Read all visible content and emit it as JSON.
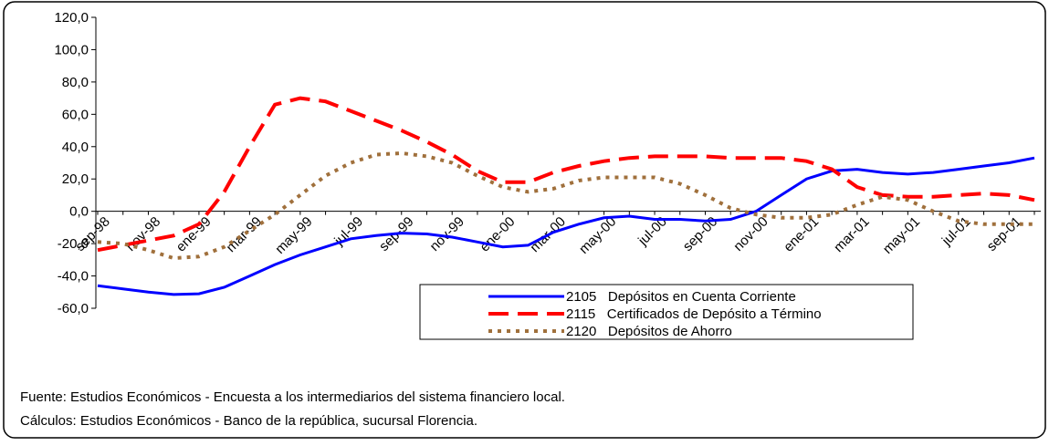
{
  "chart_data": {
    "type": "line",
    "categories": [
      "sep-98",
      null,
      "nov-98",
      null,
      "ene-99",
      null,
      "mar-99",
      null,
      "may-99",
      null,
      "jul-99",
      null,
      "sep-99",
      null,
      "nov-99",
      null,
      "ene-00",
      null,
      "mar-00",
      null,
      "may-00",
      null,
      "jul-00",
      null,
      "sep-00",
      null,
      "nov-00",
      null,
      "ene-01",
      null,
      "mar-01",
      null,
      "may-01",
      null,
      "jul-01",
      null,
      "sep-01",
      null
    ],
    "series": [
      {
        "name": "2105   Depósitos en Cuenta Corriente",
        "color": "#0000ff",
        "style": "solid",
        "values": [
          -46,
          -48,
          -50,
          -51.5,
          -51,
          -47,
          -40,
          -33,
          -27,
          -22,
          -17,
          -15,
          -13.5,
          -14,
          -16,
          -19,
          -22,
          -21,
          -13,
          -8,
          -4,
          -3,
          -5,
          -5,
          -6,
          -5,
          0,
          10,
          20,
          25,
          26,
          24,
          23,
          24,
          26,
          28,
          30,
          33
        ]
      },
      {
        "name": "2115   Certificados de Depósito a Término",
        "color": "#ff0000",
        "style": "dashed",
        "values": [
          -24,
          -21,
          -18,
          -15,
          -8,
          12,
          40,
          66,
          70,
          68,
          62,
          56,
          50,
          43,
          35,
          25,
          18,
          18,
          24,
          28,
          31,
          33,
          34,
          34,
          34,
          33,
          33,
          33,
          31,
          26,
          15,
          10,
          9,
          9,
          10,
          11,
          10,
          7
        ]
      },
      {
        "name": "2120   Depósitos de Ahorro",
        "color": "#a0703c",
        "style": "dotted",
        "values": [
          -19,
          -20,
          -24,
          -29,
          -28,
          -22,
          -12,
          -2,
          10,
          22,
          30,
          35,
          36,
          34,
          30,
          22,
          15,
          12,
          14,
          19,
          21,
          21,
          21,
          17,
          10,
          2,
          -2,
          -4,
          -4,
          -2,
          4,
          9,
          7,
          0,
          -6,
          -8,
          -8,
          -8
        ]
      }
    ],
    "ylim": [
      -60,
      120
    ],
    "yticks": [
      {
        "value": -60,
        "label": "-60,0"
      },
      {
        "value": -40,
        "label": "-40,0"
      },
      {
        "value": -20,
        "label": "-20,0"
      },
      {
        "value": 0,
        "label": "0,0"
      },
      {
        "value": 20,
        "label": "20,0"
      },
      {
        "value": 40,
        "label": "40,0"
      },
      {
        "value": 60,
        "label": "60,0"
      },
      {
        "value": 80,
        "label": "80,0"
      },
      {
        "value": 100,
        "label": "100,0"
      },
      {
        "value": 120,
        "label": "120,0"
      }
    ],
    "grid": false,
    "legend": "lower right"
  },
  "notes": [
    "Fuente:  Estudios Económicos - Encuesta a los intermediarios del sistema financiero local.",
    "Cálculos:  Estudios Económicos - Banco de la república, sucursal Florencia."
  ]
}
